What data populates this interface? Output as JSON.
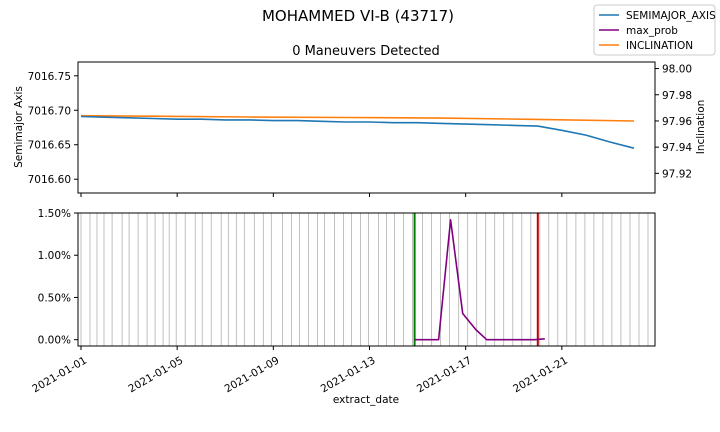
{
  "figure": {
    "suptitle": "MOHAMMED VI-B (43717)",
    "legend_entries": [
      "SEMIMAJOR_AXIS",
      "max_prob",
      "INCLINATION"
    ],
    "legend_position": "top-right"
  },
  "chart_data": [
    {
      "type": "line",
      "title": "0 Maneuvers Detected",
      "xlabel": "",
      "ylabel": "Semimajor Axis",
      "y2label": "Inclination",
      "xlim": [
        "2020-12-31T21:00",
        "2021-01-24T21:00"
      ],
      "ylim": [
        7016.58,
        7016.77
      ],
      "y2lim": [
        97.905,
        98.005
      ],
      "yticks": [
        "7016.60",
        "7016.65",
        "7016.70",
        "7016.75"
      ],
      "y2ticks": [
        "97.92",
        "97.94",
        "97.96",
        "97.98",
        "98.00"
      ],
      "series": [
        {
          "name": "SEMIMAJOR_AXIS",
          "axis": "left",
          "color": "#1f77b4",
          "x": [
            "2021-01-01",
            "2021-01-02",
            "2021-01-03",
            "2021-01-04",
            "2021-01-05",
            "2021-01-06",
            "2021-01-07",
            "2021-01-08",
            "2021-01-09",
            "2021-01-10",
            "2021-01-11",
            "2021-01-12",
            "2021-01-13",
            "2021-01-14",
            "2021-01-15",
            "2021-01-16",
            "2021-01-17",
            "2021-01-18",
            "2021-01-19",
            "2021-01-20",
            "2021-01-21",
            "2021-01-22",
            "2021-01-23",
            "2021-01-24"
          ],
          "values": [
            7016.691,
            7016.69,
            7016.689,
            7016.688,
            7016.687,
            7016.687,
            7016.686,
            7016.686,
            7016.685,
            7016.685,
            7016.684,
            7016.683,
            7016.683,
            7016.682,
            7016.682,
            7016.681,
            7016.68,
            7016.679,
            7016.678,
            7016.677,
            7016.671,
            7016.664,
            7016.654,
            7016.645
          ]
        },
        {
          "name": "INCLINATION",
          "axis": "right",
          "color": "#ff7f0e",
          "x": [
            "2021-01-01",
            "2021-01-04",
            "2021-01-08",
            "2021-01-12",
            "2021-01-16",
            "2021-01-20",
            "2021-01-24"
          ],
          "values": [
            97.964,
            97.9636,
            97.963,
            97.9626,
            97.9622,
            97.9612,
            97.96
          ]
        }
      ]
    },
    {
      "type": "line",
      "title": "",
      "xlabel": "extract_date",
      "ylabel": "",
      "xlim": [
        "2020-12-31T21:00",
        "2021-01-24T21:00"
      ],
      "ylim": [
        -0.00075,
        0.015
      ],
      "yticks": [
        "0.00%",
        "0.50%",
        "1.00%",
        "1.50%"
      ],
      "xticks": [
        "2021-01-01",
        "2021-01-05",
        "2021-01-09",
        "2021-01-13",
        "2021-01-17",
        "2021-01-21"
      ],
      "series": [
        {
          "name": "max_prob",
          "color": "#800080",
          "x": [
            "2021-01-14T21:00",
            "2021-01-15T07:00",
            "2021-01-15T21:00",
            "2021-01-16T09:00",
            "2021-01-16T21:00",
            "2021-01-17T10:00",
            "2021-01-17T21:00",
            "2021-01-18T10:00",
            "2021-01-18T21:00",
            "2021-01-19T10:00",
            "2021-01-19T21:00",
            "2021-01-20T07:00"
          ],
          "values": [
            0.0,
            0.0,
            0.0,
            0.0142,
            0.0031,
            0.0012,
            0.0,
            0.0,
            0.0,
            0.0,
            0.0,
            0.0001
          ]
        }
      ],
      "vlines": [
        {
          "x": "2021-01-14T21:00",
          "color": "#008000"
        },
        {
          "x": "2021-01-20T00:00",
          "color": "#c00000"
        }
      ],
      "gray_vlines": [
        "2021-01-01T00:00",
        "2021-01-01T09:00",
        "2021-01-01T16:00",
        "2021-01-01T23:00",
        "2021-01-02T07:00",
        "2021-01-02T17:00",
        "2021-01-03T00:00",
        "2021-01-03T09:00",
        "2021-01-03T18:00",
        "2021-01-04T02:00",
        "2021-01-04T10:00",
        "2021-01-04T16:00",
        "2021-01-04T23:00",
        "2021-01-05T08:00",
        "2021-01-05T18:00",
        "2021-01-06T01:00",
        "2021-01-06T10:00",
        "2021-01-06T20:00",
        "2021-01-07T03:00",
        "2021-01-07T11:00",
        "2021-01-07T19:00",
        "2021-01-08T05:00",
        "2021-01-08T14:00",
        "2021-01-08T22:00",
        "2021-01-09T09:00",
        "2021-01-09T18:00",
        "2021-01-10T02:00",
        "2021-01-10T11:00",
        "2021-01-10T20:00",
        "2021-01-11T03:00",
        "2021-01-11T13:00",
        "2021-01-11T22:00",
        "2021-01-12T06:00",
        "2021-01-12T15:00",
        "2021-01-12T23:00",
        "2021-01-13T09:00",
        "2021-01-13T17:00",
        "2021-01-14T01:00",
        "2021-01-14T10:00",
        "2021-01-14T19:00",
        "2021-01-15T05:00",
        "2021-01-15T14:00",
        "2021-01-15T23:00",
        "2021-01-16T08:00",
        "2021-01-16T17:00",
        "2021-01-17T02:00",
        "2021-01-17T11:00",
        "2021-01-17T20:00",
        "2021-01-18T05:00",
        "2021-01-18T14:00",
        "2021-01-18T23:00",
        "2021-01-19T08:00",
        "2021-01-19T17:00",
        "2021-01-20T02:00",
        "2021-01-20T11:00",
        "2021-01-20T20:00",
        "2021-01-21T05:00",
        "2021-01-21T14:00",
        "2021-01-21T23:00",
        "2021-01-22T08:00",
        "2021-01-22T17:00",
        "2021-01-23T02:00",
        "2021-01-23T11:00",
        "2021-01-23T20:00",
        "2021-01-24T05:00",
        "2021-01-24T14:00"
      ]
    }
  ]
}
